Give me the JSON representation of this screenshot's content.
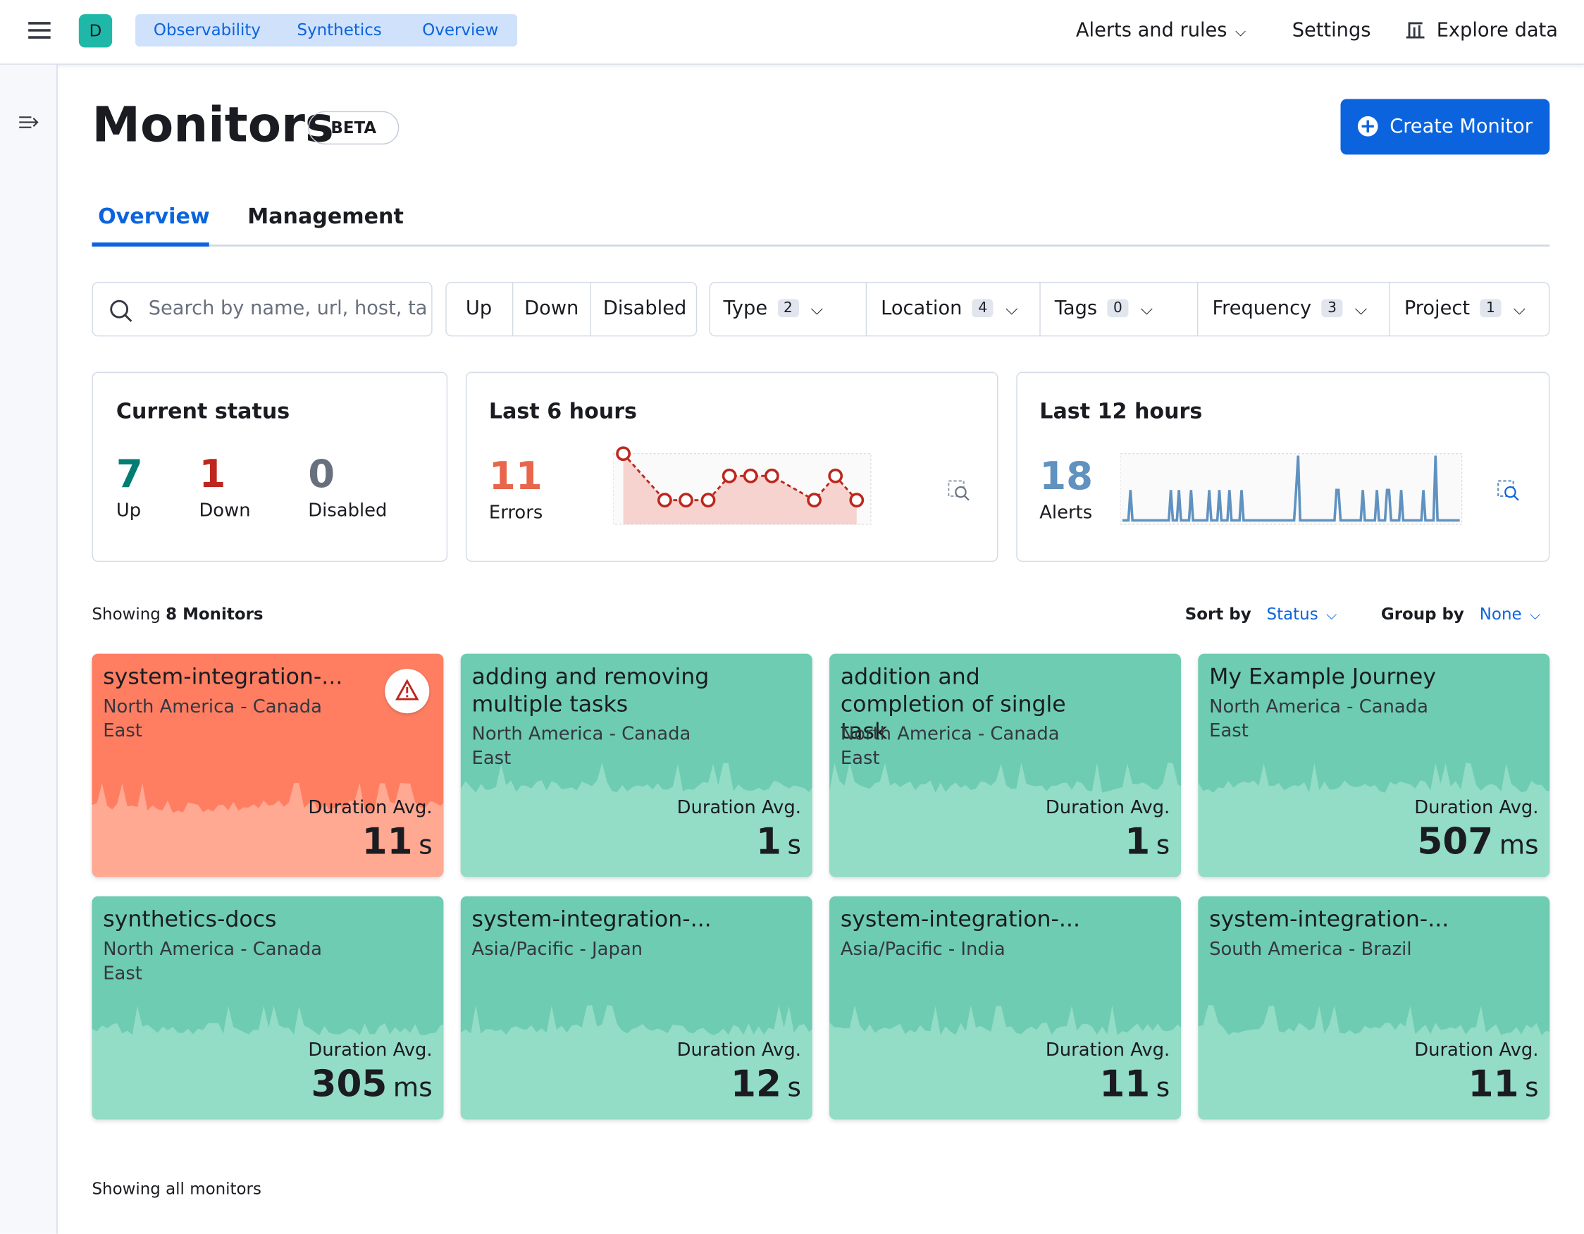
{
  "header": {
    "avatar": "D",
    "breadcrumbs": [
      "Observability",
      "Synthetics",
      "Overview"
    ],
    "nav": [
      "Alerts and rules",
      "Settings",
      "Explore data"
    ]
  },
  "page": {
    "title": "Monitors",
    "badge": "BETA",
    "create_button": "Create Monitor",
    "tabs": [
      "Overview",
      "Management"
    ]
  },
  "filters": {
    "search_placeholder": "Search by name, url, host, ta",
    "status": [
      "Up",
      "Down",
      "Disabled"
    ],
    "dropdowns": [
      {
        "label": "Type",
        "count": "2"
      },
      {
        "label": "Location",
        "count": "4"
      },
      {
        "label": "Tags",
        "count": "0"
      },
      {
        "label": "Frequency",
        "count": "3"
      },
      {
        "label": "Project",
        "count": "1"
      }
    ]
  },
  "summary": {
    "current_status": {
      "title": "Current status",
      "items": [
        {
          "value": "7",
          "label": "Up"
        },
        {
          "value": "1",
          "label": "Down"
        },
        {
          "value": "0",
          "label": "Disabled"
        }
      ]
    },
    "last_6_hours": {
      "title": "Last 6 hours",
      "value": "11",
      "label": "Errors"
    },
    "last_12_hours": {
      "title": "Last 12 hours",
      "value": "18",
      "label": "Alerts"
    }
  },
  "list": {
    "showing": "Showing",
    "showing_count": "8 Monitors",
    "sort_label": "Sort by",
    "sort_value": "Status",
    "group_label": "Group by",
    "group_value": "None",
    "duration_label": "Duration Avg.",
    "footer": "Showing all monitors"
  },
  "monitors": [
    {
      "name": "system-integration-...",
      "location": "North America - Canada East",
      "duration": "11",
      "unit": "s",
      "status": "down"
    },
    {
      "name": "adding and removing multiple tasks",
      "location": "North America - Canada East",
      "duration": "1",
      "unit": "s",
      "status": "up"
    },
    {
      "name": "addition and completion of single task",
      "location": "North America - Canada East",
      "duration": "1",
      "unit": "s",
      "status": "up"
    },
    {
      "name": "My Example Journey",
      "location": "North America - Canada East",
      "duration": "507",
      "unit": "ms",
      "status": "up"
    },
    {
      "name": "synthetics-docs",
      "location": "North America - Canada East",
      "duration": "305",
      "unit": "ms",
      "status": "up"
    },
    {
      "name": "system-integration-...",
      "location": "Asia/Pacific - Japan",
      "duration": "12",
      "unit": "s",
      "status": "up"
    },
    {
      "name": "system-integration-...",
      "location": "Asia/Pacific - India",
      "duration": "11",
      "unit": "s",
      "status": "up"
    },
    {
      "name": "system-integration-...",
      "location": "South America - Brazil",
      "duration": "11",
      "unit": "s",
      "status": "up"
    }
  ]
}
